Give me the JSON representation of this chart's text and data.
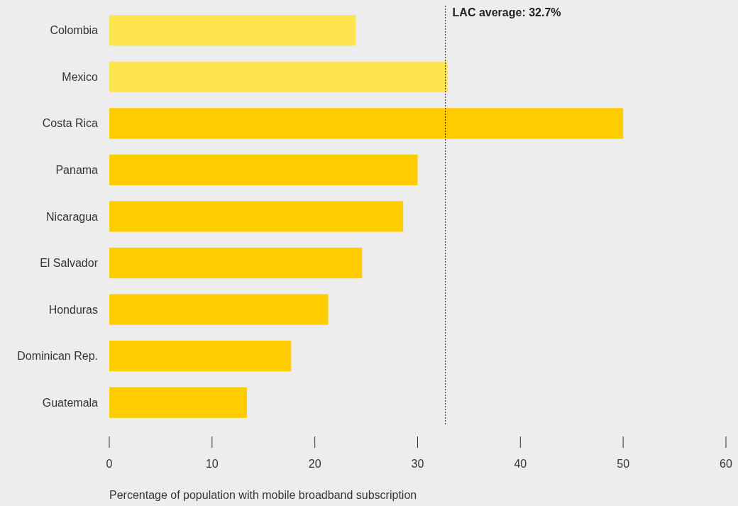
{
  "chart_data": {
    "type": "bar",
    "orientation": "horizontal",
    "xlabel": "Percentage of population with mobile broadband subscription",
    "categories": [
      "Colombia",
      "Mexico",
      "Costa Rica",
      "Panama",
      "Nicaragua",
      "El Salvador",
      "Honduras",
      "Dominican Rep.",
      "Guatemala"
    ],
    "values": [
      24.0,
      32.9,
      50.0,
      30.0,
      28.6,
      24.6,
      21.3,
      17.7,
      13.4
    ],
    "colors": [
      "#ffe452",
      "#ffe452",
      "#ffcc00",
      "#ffcc00",
      "#ffcc00",
      "#ffcc00",
      "#ffcc00",
      "#ffcc00",
      "#ffcc00"
    ],
    "xlim": [
      0,
      60
    ],
    "xticks": [
      0,
      10,
      20,
      30,
      40,
      50,
      60
    ],
    "grid": false,
    "ref_lines": [
      {
        "axis": "x",
        "value": 32.7,
        "label": "LAC average: 32.7%",
        "color": "#222222",
        "line_style": "dotted"
      }
    ]
  }
}
